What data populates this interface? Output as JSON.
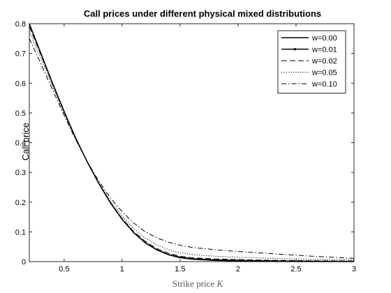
{
  "chart_data": {
    "type": "line",
    "title": "Call prices under different physical mixed distributions",
    "xlabel_main": "Strike price ",
    "xlabel_var": "K",
    "ylabel": "Call price",
    "xlim": [
      0.2,
      3
    ],
    "ylim": [
      0,
      0.8
    ],
    "xticks": [
      0.5,
      1,
      1.5,
      2,
      2.5,
      3
    ],
    "xtick_labels": [
      "0.5",
      "1",
      "1.5",
      "2",
      "2.5",
      "3"
    ],
    "yticks": [
      0,
      0.1,
      0.2,
      0.3,
      0.4,
      0.5,
      0.6,
      0.7,
      0.8
    ],
    "ytick_labels": [
      "0",
      "0.1",
      "0.2",
      "0.3",
      "0.4",
      "0.5",
      "0.6",
      "0.7",
      "0.8"
    ],
    "grid": false,
    "legend_position": "top-right",
    "x": [
      0.2,
      0.3,
      0.4,
      0.5,
      0.6,
      0.7,
      0.8,
      0.9,
      1.0,
      1.1,
      1.2,
      1.3,
      1.4,
      1.5,
      1.6,
      1.8,
      2.0,
      2.2,
      2.4,
      2.6,
      2.8,
      3.0
    ],
    "series": [
      {
        "name": "w=0.00",
        "style": "solid",
        "marker": false,
        "values": [
          0.8,
          0.7,
          0.6,
          0.505,
          0.415,
          0.335,
          0.262,
          0.197,
          0.142,
          0.097,
          0.063,
          0.039,
          0.023,
          0.013,
          0.008,
          0.004,
          0.002,
          0.001,
          0.0005,
          0.0003,
          0.0002,
          0.0001
        ]
      },
      {
        "name": "w=0.01",
        "style": "solid",
        "marker": true,
        "values": [
          0.8,
          0.7,
          0.6,
          0.505,
          0.415,
          0.335,
          0.262,
          0.197,
          0.143,
          0.098,
          0.064,
          0.04,
          0.024,
          0.015,
          0.01,
          0.006,
          0.004,
          0.003,
          0.002,
          0.0015,
          0.001,
          0.001
        ]
      },
      {
        "name": "w=0.02",
        "style": "dashed",
        "marker": false,
        "values": [
          0.79,
          0.695,
          0.597,
          0.503,
          0.414,
          0.335,
          0.263,
          0.199,
          0.145,
          0.101,
          0.068,
          0.044,
          0.028,
          0.018,
          0.013,
          0.009,
          0.007,
          0.005,
          0.004,
          0.003,
          0.0025,
          0.002
        ]
      },
      {
        "name": "w=0.05",
        "style": "dotted",
        "marker": false,
        "values": [
          0.775,
          0.684,
          0.59,
          0.498,
          0.412,
          0.335,
          0.265,
          0.205,
          0.153,
          0.111,
          0.079,
          0.056,
          0.04,
          0.03,
          0.024,
          0.018,
          0.015,
          0.012,
          0.01,
          0.008,
          0.007,
          0.006
        ]
      },
      {
        "name": "w=0.10",
        "style": "dashdot",
        "marker": false,
        "values": [
          0.75,
          0.665,
          0.578,
          0.492,
          0.41,
          0.336,
          0.27,
          0.214,
          0.168,
          0.13,
          0.1,
          0.08,
          0.065,
          0.055,
          0.048,
          0.04,
          0.034,
          0.029,
          0.024,
          0.019,
          0.015,
          0.011
        ]
      }
    ]
  }
}
